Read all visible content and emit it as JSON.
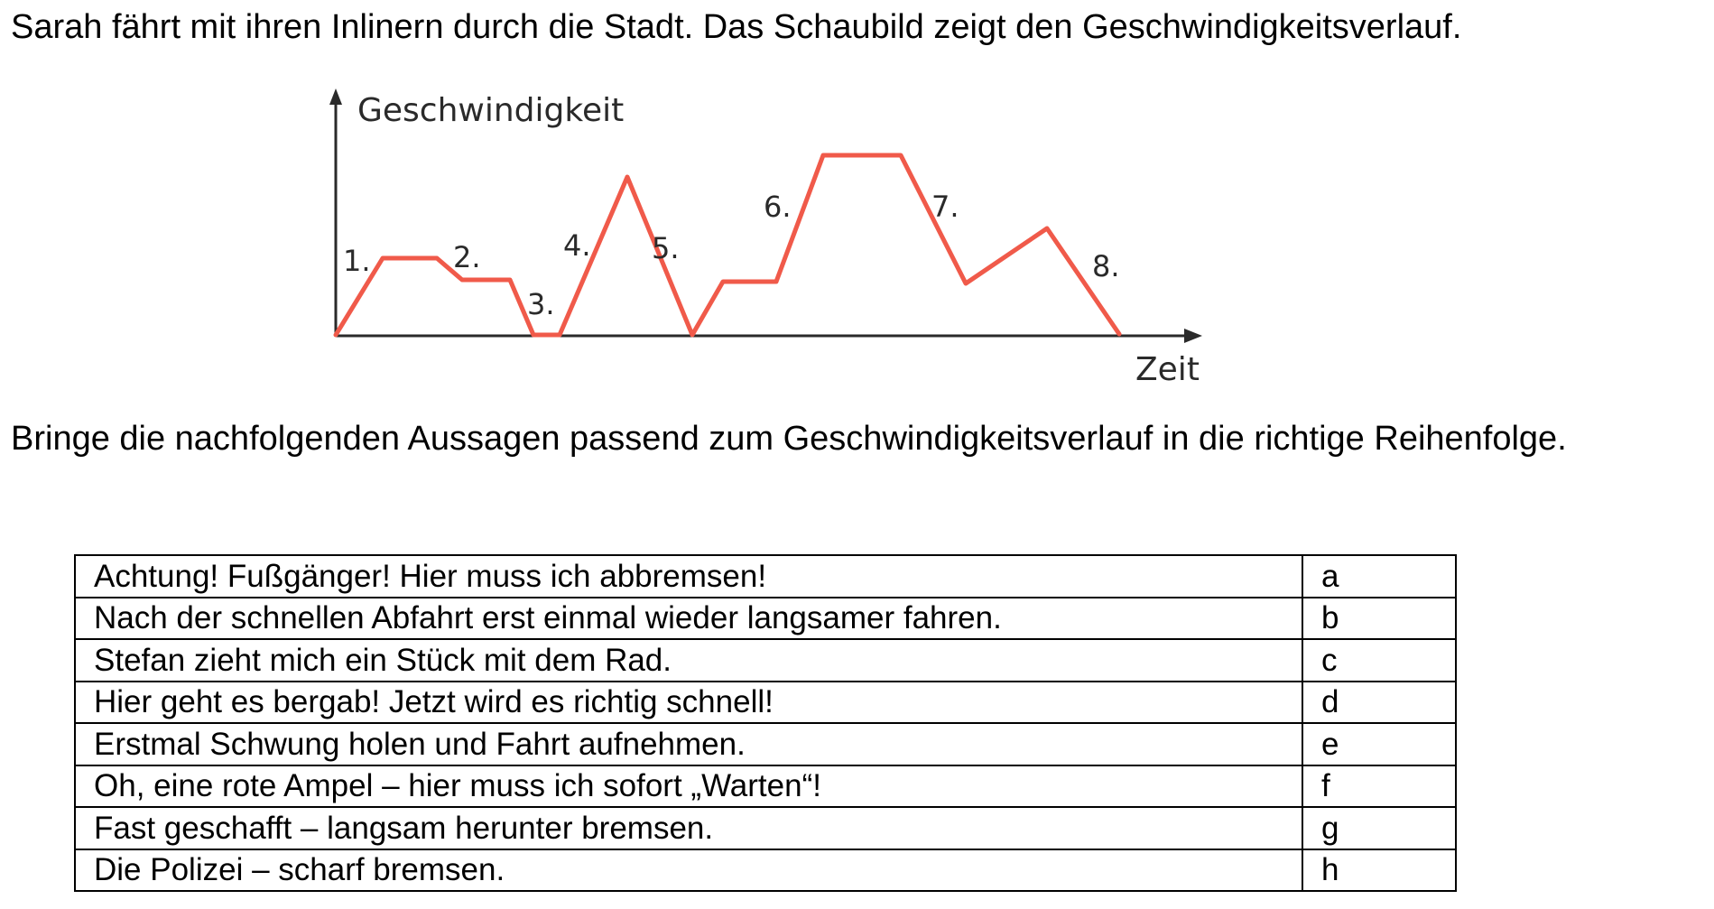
{
  "intro_text": "Sarah fährt mit ihren Inlinern durch die Stadt. Das Schaubild zeigt den Geschwindigkeitsverlauf.",
  "figure": {
    "y_axis_label": "Geschwindigkeit",
    "x_axis_label": "Zeit",
    "line_color": "#f05a4a",
    "axis_color": "#2a2a2a",
    "segment_labels": [
      "1.",
      "2.",
      "3.",
      "4.",
      "5.",
      "6.",
      "7.",
      "8."
    ]
  },
  "instruction_text": "Bringe die nachfolgenden Aussagen passend zum Geschwindigkeitsverlauf in die richtige Reihenfolge.",
  "statements": [
    {
      "text": "Achtung! Fußgänger! Hier muss ich abbremsen!",
      "letter": "a"
    },
    {
      "text": "Nach der schnellen Abfahrt erst einmal wieder langsamer fahren.",
      "letter": "b"
    },
    {
      "text": "Stefan zieht mich ein Stück mit dem Rad.",
      "letter": "c"
    },
    {
      "text": "Hier geht es bergab! Jetzt wird es richtig schnell!",
      "letter": "d"
    },
    {
      "text": "Erstmal Schwung holen und Fahrt aufnehmen.",
      "letter": "e"
    },
    {
      "text": "Oh, eine rote Ampel – hier muss ich sofort „Warten“!",
      "letter": "f"
    },
    {
      "text": "Fast geschafft – langsam herunter bremsen.",
      "letter": "g"
    },
    {
      "text": "Die Polizei – scharf bremsen.",
      "letter": "h"
    }
  ]
}
